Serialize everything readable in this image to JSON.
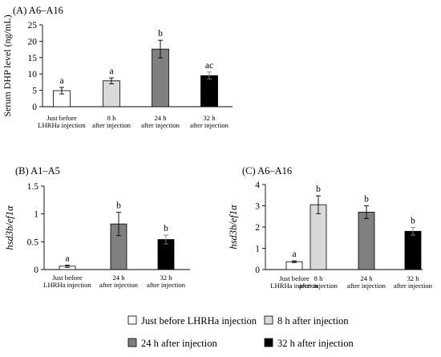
{
  "chart_data": [
    {
      "type": "bar",
      "panel": "(A)",
      "title": "A6–A16",
      "ylabel": "Serum DHP level (ng/mL)",
      "ylim": [
        0,
        25
      ],
      "yticks": [
        "0",
        "5",
        "10",
        "15",
        "20",
        "25"
      ],
      "categories": [
        [
          "Just before",
          "LHRHa injection"
        ],
        [
          "8  h",
          "after injection"
        ],
        [
          "24 h",
          "after injection"
        ],
        [
          "32 h",
          "after injection"
        ]
      ],
      "values": [
        4.9,
        7.9,
        17.6,
        9.5
      ],
      "errors": [
        1.0,
        0.9,
        2.7,
        1.1
      ],
      "significance": [
        "a",
        "a",
        "b",
        "ac"
      ],
      "fills": [
        "#ffffff",
        "#d9d9d9",
        "#808080",
        "#000000"
      ],
      "grid": false
    },
    {
      "type": "bar",
      "panel": "(B)",
      "title": "A1–A5",
      "ylabel": "hsd3b/ef1α",
      "ylim": [
        0,
        1.5
      ],
      "yticks": [
        "0",
        "0.5",
        "1",
        "1.5"
      ],
      "categories": [
        [
          "Just before",
          "LHRHa injection"
        ],
        [
          "24 h",
          "after injection"
        ],
        [
          "32 h",
          "after injection"
        ]
      ],
      "values": [
        0.06,
        0.82,
        0.54
      ],
      "errors": [
        0.02,
        0.21,
        0.08
      ],
      "significance": [
        "a",
        "b",
        "b"
      ],
      "fills": [
        "#ffffff",
        "#808080",
        "#000000"
      ],
      "grid": false
    },
    {
      "type": "bar",
      "panel": "(C)",
      "title": "A6–A16",
      "ylabel": "hsd3b/ef1α",
      "ylim": [
        0,
        4
      ],
      "yticks": [
        "0",
        "1",
        "2",
        "3",
        "4"
      ],
      "categories": [
        [
          "Just before",
          "LHRHa injection"
        ],
        [
          "8  h",
          "after injection"
        ],
        [
          "24 h",
          "after injection"
        ],
        [
          "32 h",
          "after injection"
        ]
      ],
      "values": [
        0.37,
        3.05,
        2.7,
        1.8
      ],
      "errors": [
        0.04,
        0.42,
        0.3,
        0.18
      ],
      "significance": [
        "a",
        "b",
        "b",
        "b"
      ],
      "fills": [
        "#ffffff",
        "#d9d9d9",
        "#808080",
        "#000000"
      ],
      "grid": false
    }
  ],
  "legend": {
    "placement": "bottom",
    "items": [
      {
        "label": "Just before LHRHa injection",
        "color": "#ffffff"
      },
      {
        "label": "8 h after injection",
        "color": "#d9d9d9"
      },
      {
        "label": "24 h after injection",
        "color": "#808080"
      },
      {
        "label": "32 h after injection",
        "color": "#000000"
      }
    ]
  }
}
